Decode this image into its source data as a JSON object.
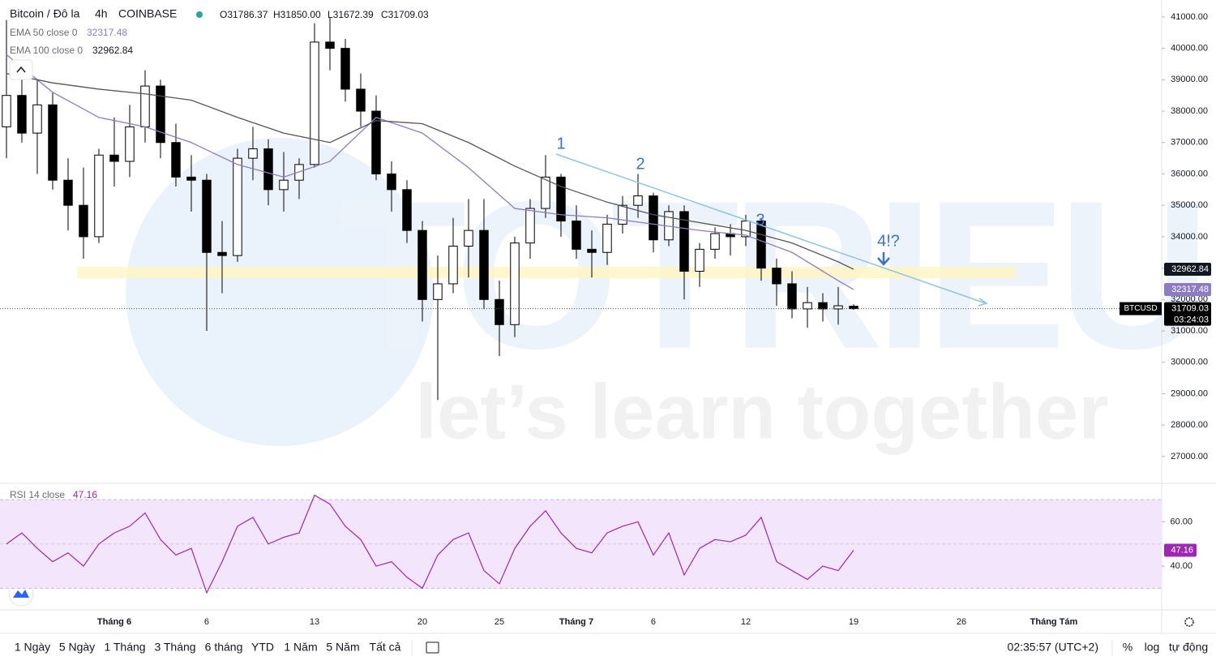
{
  "header": {
    "symbol": "Bitcoin / Đô la",
    "interval": "4h",
    "exchange": "COINBASE",
    "ohlc": [
      "O31786.37",
      "H31850.00",
      "L31672.39",
      "C31709.03"
    ]
  },
  "watermark": {
    "brand": "TOTRIEU",
    "slogan": "let’s learn together"
  },
  "chart_data": [
    {
      "type": "candlestick",
      "x": [
        -7,
        -6,
        -5,
        -4,
        -3,
        -2,
        -1,
        0,
        1,
        2,
        3,
        4,
        5,
        6,
        7,
        8,
        9,
        10,
        11,
        12,
        13,
        14,
        15,
        16,
        17,
        18,
        19,
        20,
        21,
        22,
        23,
        24,
        25,
        26,
        27,
        28,
        29,
        30,
        31,
        32,
        33,
        34,
        35,
        36,
        37,
        38,
        39,
        40,
        41,
        42,
        43,
        44,
        45,
        46,
        47,
        48
      ],
      "open": [
        37500,
        38500,
        37300,
        38200,
        35800,
        35000,
        34000,
        36600,
        36400,
        37500,
        38800,
        37000,
        35900,
        35800,
        33500,
        33400,
        36500,
        36800,
        35500,
        35800,
        36300,
        40200,
        40000,
        38700,
        38000,
        36000,
        35500,
        34200,
        32000,
        32500,
        33700,
        34200,
        32000,
        31200,
        33800,
        34900,
        35900,
        34500,
        33600,
        33500,
        34400,
        35000,
        35300,
        33900,
        34800,
        32900,
        33600,
        34100,
        34000,
        34500,
        33000,
        32500,
        31700,
        31900,
        31700,
        31786.37
      ],
      "high": [
        40900,
        39500,
        39000,
        38600,
        36500,
        36200,
        36800,
        37800,
        38200,
        39300,
        39000,
        37600,
        36600,
        36000,
        34500,
        36800,
        37500,
        37100,
        36700,
        36500,
        40800,
        41000,
        40300,
        39200,
        38500,
        36400,
        35800,
        34500,
        33400,
        34600,
        35200,
        35200,
        32600,
        34000,
        35200,
        36600,
        36000,
        35000,
        34200,
        34700,
        35300,
        36000,
        35400,
        35000,
        35000,
        33800,
        34300,
        34400,
        34700,
        34600,
        33300,
        32900,
        32400,
        32200,
        32400,
        31850
      ],
      "low": [
        36500,
        37000,
        36000,
        35500,
        34200,
        33300,
        33800,
        35600,
        35900,
        37000,
        36500,
        35600,
        34800,
        31000,
        32200,
        33200,
        35800,
        35000,
        34800,
        35200,
        36200,
        39300,
        38300,
        37500,
        35800,
        34800,
        33800,
        31300,
        28800,
        32200,
        32700,
        31700,
        30200,
        30800,
        33300,
        34600,
        34000,
        33300,
        32700,
        33100,
        34100,
        34600,
        33500,
        33700,
        32000,
        32400,
        33300,
        33400,
        33700,
        32600,
        31800,
        31400,
        31100,
        31300,
        31200,
        31672.39
      ],
      "close": [
        38500,
        37300,
        38200,
        35800,
        35000,
        34000,
        36600,
        36400,
        37500,
        38800,
        37000,
        35900,
        35800,
        33500,
        33400,
        36500,
        36800,
        35500,
        35800,
        36300,
        40200,
        40000,
        38700,
        38000,
        36000,
        35500,
        34200,
        32000,
        32500,
        33700,
        34200,
        32000,
        31200,
        33800,
        34900,
        35900,
        34500,
        33600,
        33500,
        34400,
        35000,
        35300,
        33900,
        34800,
        32900,
        33600,
        34100,
        34000,
        34500,
        33000,
        32500,
        31700,
        31900,
        31700,
        31800,
        31709.03
      ],
      "up_color": "#ffffff",
      "down_color": "#000000",
      "series": [
        {
          "name": "EMA 50 close 0",
          "color": "#8e7cc3",
          "x": [
            -7,
            -4,
            -1,
            2,
            5,
            8,
            11,
            14,
            17,
            20,
            23,
            26,
            29,
            32,
            35,
            38,
            41,
            44,
            47,
            48
          ],
          "values": [
            39800,
            38600,
            37800,
            37500,
            37000,
            36300,
            35900,
            36400,
            37800,
            37300,
            36200,
            34900,
            34700,
            34600,
            34400,
            34200,
            34050,
            33500,
            32600,
            32317.48
          ]
        },
        {
          "name": "EMA 100 close 0",
          "color": "#555555",
          "x": [
            -7,
            -4,
            -1,
            2,
            5,
            8,
            11,
            14,
            17,
            20,
            23,
            26,
            29,
            32,
            35,
            38,
            41,
            44,
            47,
            48
          ],
          "values": [
            39200,
            38900,
            38700,
            38550,
            38350,
            37800,
            37300,
            37000,
            37700,
            37600,
            37000,
            36250,
            35600,
            35100,
            34700,
            34450,
            34200,
            33800,
            33200,
            32962.84
          ]
        }
      ],
      "xlim": [
        -7.42,
        68
      ],
      "xticks": [
        {
          "value": 0,
          "label": "Tháng 6"
        },
        6,
        13,
        20,
        25,
        {
          "value": 30,
          "label": "Tháng 7"
        },
        {
          "value": 35,
          "label": "6"
        },
        {
          "value": 41,
          "label": "12"
        },
        {
          "value": 48,
          "label": "19"
        },
        {
          "value": 55,
          "label": "26"
        },
        {
          "value": 61,
          "label": "Tháng Tám"
        }
      ],
      "ylim": [
        26170,
        41540
      ],
      "yticks": [
        {
          "value": 27000,
          "label": "27000.00"
        },
        {
          "value": 28000,
          "label": "28000.00"
        },
        {
          "value": 29000,
          "label": "29000.00"
        },
        {
          "value": 30000,
          "label": "30000.00"
        },
        {
          "value": 31000,
          "label": "31000.00"
        },
        {
          "value": 32000,
          "label": "32000.00"
        },
        {
          "value": 33000,
          "label": "33000.00"
        },
        {
          "value": 34000,
          "label": "34000.00"
        },
        {
          "value": 35000,
          "label": "35000.00"
        },
        {
          "value": 36000,
          "label": "36000.00"
        },
        {
          "value": 37000,
          "label": "37000.00"
        },
        {
          "value": 38000,
          "label": "38000.00"
        },
        {
          "value": 39000,
          "label": "39000.00"
        },
        {
          "value": 40000,
          "label": "40000.00"
        },
        {
          "value": 41000,
          "label": "41000.00"
        }
      ],
      "symbol_tag": "BTCUSD",
      "countdown": "03:24:03",
      "annotations": [
        "1",
        "2",
        "3",
        "4!?"
      ]
    },
    {
      "type": "line",
      "name": "RSI 14 close",
      "color": "#9c27b0",
      "x": [
        -7,
        -6,
        -5,
        -4,
        -3,
        -2,
        -1,
        0,
        1,
        2,
        3,
        4,
        5,
        6,
        7,
        8,
        9,
        10,
        11,
        12,
        13,
        14,
        15,
        16,
        17,
        18,
        19,
        20,
        21,
        22,
        23,
        24,
        25,
        26,
        27,
        28,
        29,
        30,
        31,
        32,
        33,
        34,
        35,
        36,
        37,
        38,
        39,
        40,
        41,
        42,
        43,
        44,
        45,
        46,
        47,
        48
      ],
      "values": [
        50,
        55,
        48,
        42,
        46,
        40,
        50,
        55,
        58,
        64,
        52,
        45,
        48,
        28,
        42,
        58,
        62,
        50,
        53,
        55,
        72,
        68,
        58,
        52,
        40,
        42,
        35,
        30,
        45,
        52,
        55,
        38,
        32,
        48,
        58,
        65,
        55,
        48,
        46,
        55,
        58,
        60,
        45,
        55,
        36,
        48,
        52,
        51,
        54,
        62,
        42,
        38,
        34,
        40,
        38,
        47.16
      ],
      "ylim": [
        21,
        77
      ],
      "yticks": [
        {
          "value": 40,
          "label": "40.00"
        },
        {
          "value": 60,
          "label": "60.00"
        }
      ],
      "band": [
        30,
        70
      ],
      "midline": 50
    }
  ],
  "toolbar": {
    "ranges": [
      "1 Ngày",
      "5 Ngày",
      "1 Tháng",
      "3 Tháng",
      "6 tháng",
      "YTD",
      "1 Năm",
      "5 Năm",
      "Tất cả"
    ],
    "clock": "02:35:57 (UTC+2)",
    "options": [
      "%",
      "log",
      "tự động"
    ]
  }
}
